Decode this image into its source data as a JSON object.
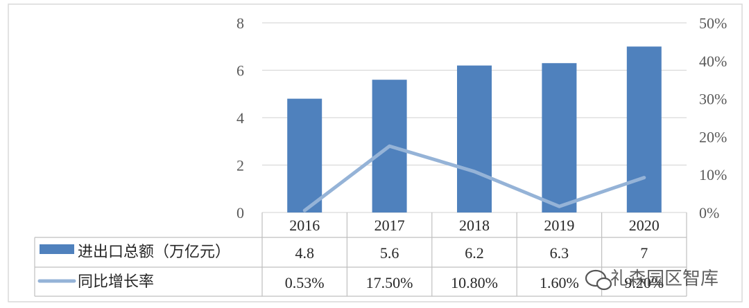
{
  "chart_data": {
    "type": "bar",
    "categories": [
      "2016",
      "2017",
      "2018",
      "2019",
      "2020"
    ],
    "series": [
      {
        "name": "进出口总额（万亿元）",
        "type": "bar",
        "axis": "left",
        "values": [
          4.8,
          5.6,
          6.2,
          6.3,
          7
        ],
        "table_labels": [
          "4.8",
          "5.6",
          "6.2",
          "6.3",
          "7"
        ]
      },
      {
        "name": "同比增长率",
        "type": "line",
        "axis": "right",
        "values": [
          0.53,
          17.5,
          10.8,
          1.6,
          9.2
        ],
        "table_labels": [
          "0.53%",
          "17.50%",
          "10.80%",
          "1.60%",
          "9.20%"
        ]
      }
    ],
    "y_left": {
      "range": [
        0,
        8
      ],
      "ticks": [
        "0",
        "2",
        "4",
        "6",
        "8"
      ]
    },
    "y_right": {
      "range": [
        0,
        50
      ],
      "ticks": [
        "0%",
        "10%",
        "20%",
        "30%",
        "40%",
        "50%"
      ]
    },
    "grid": true,
    "legend": "data-table-below",
    "colors": {
      "bar": "#4f81bd",
      "line": "#95b3d7",
      "grid": "#d9d9d9",
      "table_border": "#bfbfbf"
    }
  },
  "watermark": {
    "text": "礼森园区智库",
    "icon": "wechat-icon"
  }
}
